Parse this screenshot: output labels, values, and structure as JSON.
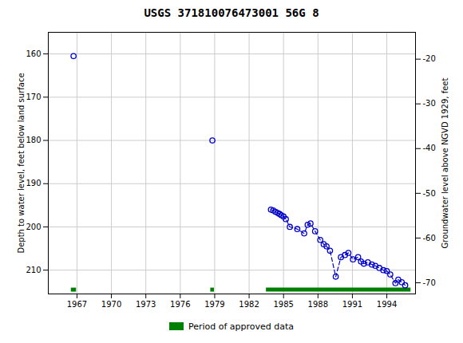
{
  "chart_data": {
    "type": "scatter",
    "title": "USGS 371810076473001 56G  8",
    "ylabel": "Depth to water level, feet below land surface",
    "y2label": "Groundwater level above NGVD 1929, feet",
    "x": [
      1966.7,
      1978.8,
      1983.9,
      1984.1,
      1984.3,
      1984.5,
      1984.65,
      1984.8,
      1985.0,
      1985.2,
      1985.55,
      1986.2,
      1986.8,
      1987.1,
      1987.35,
      1987.75,
      1988.2,
      1988.5,
      1988.75,
      1989.05,
      1989.55,
      1990.0,
      1990.35,
      1990.65,
      1991.05,
      1991.5,
      1991.75,
      1992.0,
      1992.35,
      1992.7,
      1993.0,
      1993.35,
      1993.7,
      1994.0,
      1994.3,
      1994.75,
      1995.0,
      1995.3,
      1995.6
    ],
    "series": [
      {
        "type": "scatter",
        "marker": "circle",
        "color": "#0000cc",
        "values": [
          160.5,
          180.0,
          196.0,
          196.2,
          196.5,
          196.8,
          197.0,
          197.3,
          197.6,
          198.2,
          200.0,
          200.5,
          201.5,
          199.5,
          199.2,
          201.0,
          203.0,
          204.0,
          204.5,
          205.5,
          211.5,
          207.0,
          206.5,
          206.0,
          207.5,
          207.0,
          208.0,
          208.5,
          208.2,
          208.7,
          209.0,
          209.5,
          210.0,
          210.2,
          211.0,
          213.0,
          212.2,
          212.8,
          213.5
        ]
      },
      {
        "type": "line",
        "line_style": "dashed",
        "color": "#0000cc",
        "values": [
          null,
          null,
          196.0,
          196.2,
          196.5,
          196.8,
          197.0,
          197.3,
          197.6,
          198.2,
          200.0,
          200.5,
          201.5,
          199.5,
          199.2,
          201.0,
          203.0,
          204.0,
          204.5,
          205.5,
          211.5,
          207.0,
          206.5,
          206.0,
          207.5,
          207.0,
          208.0,
          208.5,
          208.2,
          208.7,
          209.0,
          209.5,
          210.0,
          210.2,
          211.0,
          213.0,
          212.2,
          212.8,
          213.5
        ]
      }
    ],
    "approved_periods": {
      "name": "Period of approved data",
      "color": "#008000",
      "y": 214.5,
      "ranges": [
        [
          1966.5,
          1966.95
        ],
        [
          1978.65,
          1978.97
        ],
        [
          1983.5,
          1996.1
        ]
      ]
    },
    "xlim": [
      1964.5,
      1996.5
    ],
    "xticks": [
      1967,
      1970,
      1973,
      1976,
      1979,
      1982,
      1985,
      1988,
      1991,
      1994
    ],
    "ylim": [
      215.5,
      155.0
    ],
    "yticks": [
      160,
      170,
      180,
      190,
      200,
      210
    ],
    "y2lim": [
      -72.5,
      -14.0
    ],
    "y2ticks": [
      -20,
      -30,
      -40,
      -50,
      -60,
      -70
    ],
    "grid": true,
    "legend": "bottom"
  }
}
